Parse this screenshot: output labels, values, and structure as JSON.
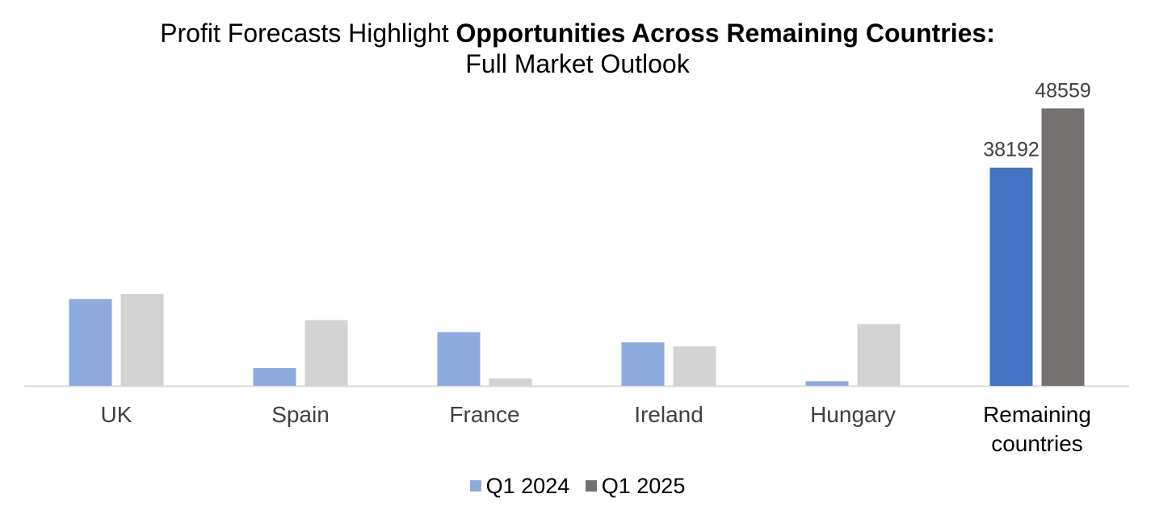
{
  "title": {
    "prefix": "Profit Forecasts Highlight ",
    "emphasis": "Opportunities Across Remaining Countries:",
    "subtitle": "Full Market Outlook"
  },
  "colors": {
    "q1_2024_muted": "#8faadc",
    "q1_2025_muted": "#d3d3d3",
    "q1_2024_highlight": "#4472c4",
    "q1_2025_highlight": "#767171",
    "axis": "#d9d9d9",
    "label_text": "#404040"
  },
  "chart_data": {
    "type": "bar",
    "categories": [
      "UK",
      "Spain",
      "France",
      "Ireland",
      "Hungary",
      "Remaining countries"
    ],
    "series": [
      {
        "name": "Q1 2024",
        "values": [
          15200,
          3100,
          9400,
          7600,
          800,
          38192
        ]
      },
      {
        "name": "Q1 2025",
        "values": [
          16100,
          11500,
          1300,
          6900,
          10800,
          48559
        ]
      }
    ],
    "data_labels": {
      "category": "Remaining countries",
      "values": [
        "38192",
        "48559"
      ]
    },
    "highlight_category": "Remaining countries",
    "ylim": [
      0,
      52000
    ],
    "legend_position": "bottom",
    "grid": false
  }
}
